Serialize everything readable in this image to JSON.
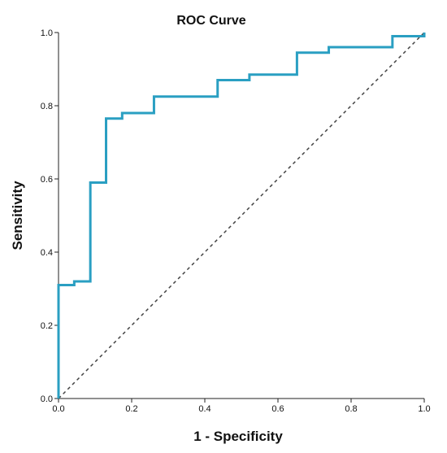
{
  "chart_data": {
    "type": "line",
    "title": "ROC Curve",
    "xlabel": "1 - Specificity",
    "ylabel": "Sensitivity",
    "xlim": [
      0.0,
      1.0
    ],
    "ylim": [
      0.0,
      1.0
    ],
    "xticks": [
      "0.0",
      "0.2",
      "0.4",
      "0.6",
      "0.8",
      "1.0"
    ],
    "yticks": [
      "0.0",
      "0.2",
      "0.4",
      "0.6",
      "0.8",
      "1.0"
    ],
    "grid": false,
    "series": [
      {
        "style": "step",
        "color": "#2a9fc2",
        "x": [
          0.0,
          0.0,
          0.043,
          0.043,
          0.087,
          0.087,
          0.13,
          0.13,
          0.174,
          0.174,
          0.261,
          0.261,
          0.435,
          0.435,
          0.522,
          0.522,
          0.652,
          0.652,
          0.739,
          0.739,
          0.913,
          0.913,
          1.0,
          1.0
        ],
        "y": [
          0.0,
          0.31,
          0.31,
          0.32,
          0.32,
          0.59,
          0.59,
          0.765,
          0.765,
          0.78,
          0.78,
          0.825,
          0.825,
          0.87,
          0.87,
          0.885,
          0.885,
          0.945,
          0.945,
          0.96,
          0.96,
          0.99,
          0.99,
          1.0
        ]
      },
      {
        "style": "dashed",
        "color": "#444444",
        "x": [
          0.0,
          1.0
        ],
        "y": [
          0.0,
          1.0
        ]
      }
    ]
  }
}
